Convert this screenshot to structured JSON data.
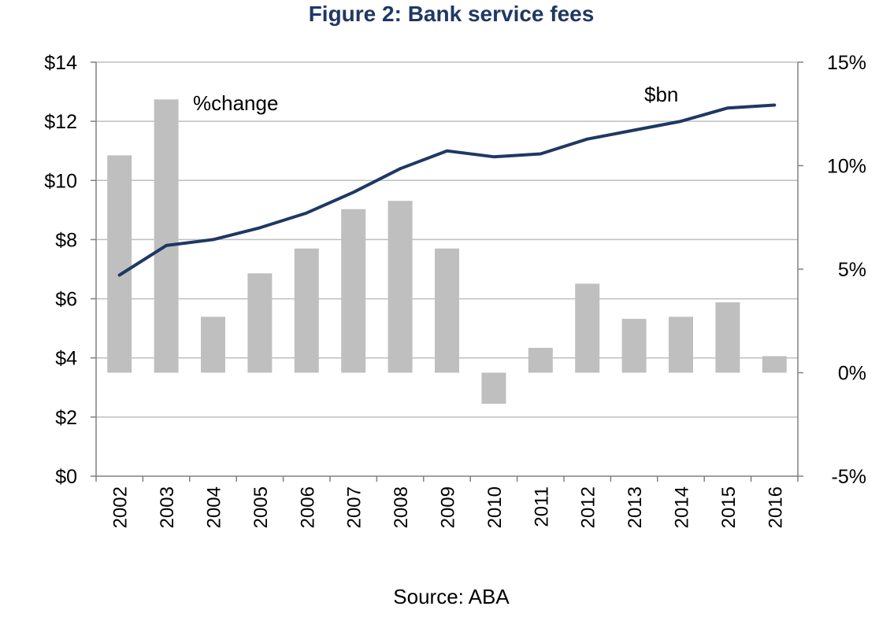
{
  "chart_data": {
    "type": "bar",
    "title": "Figure 2: Bank service fees",
    "source": "Source: ABA",
    "categories": [
      "2002",
      "2003",
      "2004",
      "2005",
      "2006",
      "2007",
      "2008",
      "2009",
      "2010",
      "2011",
      "2012",
      "2013",
      "2014",
      "2015",
      "2016"
    ],
    "series": [
      {
        "name": "%change",
        "type": "bar",
        "axis": "right",
        "values": [
          10.5,
          13.2,
          2.7,
          4.8,
          6.0,
          7.9,
          8.3,
          6.0,
          -1.5,
          1.2,
          4.3,
          2.6,
          2.7,
          3.4,
          0.8
        ]
      },
      {
        "name": "$bn",
        "type": "line",
        "axis": "left",
        "values": [
          6.8,
          7.8,
          8.0,
          8.4,
          8.9,
          9.6,
          10.4,
          11.0,
          10.8,
          10.9,
          11.4,
          11.7,
          12.0,
          12.45,
          12.55
        ]
      }
    ],
    "y_left": {
      "min": 0,
      "max": 14,
      "step": 2,
      "ticks": [
        "$0",
        "$2",
        "$4",
        "$6",
        "$8",
        "$10",
        "$12",
        "$14"
      ]
    },
    "y_right": {
      "min": -5,
      "max": 15,
      "step": 5,
      "ticks": [
        "-5%",
        "0%",
        "5%",
        "10%",
        "15%"
      ]
    },
    "grid": true,
    "colors": {
      "title": "#1F3864",
      "bar": "#BFBFBF",
      "line": "#1F3864",
      "grid": "#BFBFBF",
      "axis": "#808080"
    }
  }
}
